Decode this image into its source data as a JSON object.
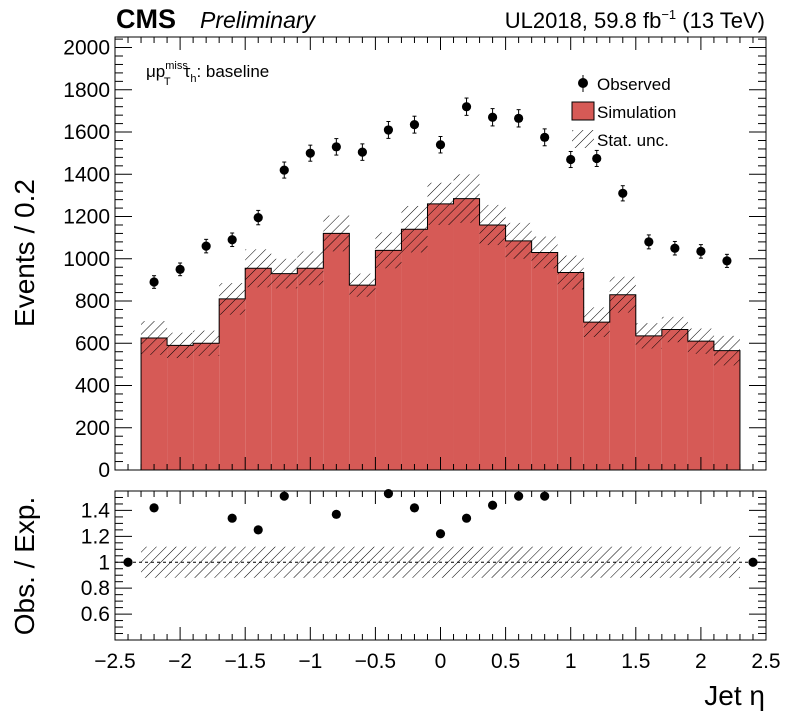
{
  "header": {
    "experiment": "CMS",
    "status": "Preliminary",
    "lumi_prefix": "UL2018, 59.8 fb",
    "lumi_exp": "−1",
    "lumi_suffix": " (13 TeV)"
  },
  "annotation": {
    "mu": "μ",
    "p": "p",
    "p_sup": "miss",
    "p_sub": "T",
    "tau": "τ",
    "tau_sub": "h",
    "suffix": ": baseline"
  },
  "colors": {
    "simulation_fill": "#d65a56",
    "simulation_edge": "#000000",
    "observed": "#000000"
  },
  "chart_data": [
    {
      "type": "bar",
      "panel": "main",
      "ylabel": "Events / 0.2",
      "xlim": [
        -2.5,
        2.5
      ],
      "ylim": [
        0,
        2050
      ],
      "yticks": [
        0,
        200,
        400,
        600,
        800,
        1000,
        1200,
        1400,
        1600,
        1800,
        2000
      ],
      "bin_edges": [
        -2.3,
        -2.1,
        -1.9,
        -1.7,
        -1.5,
        -1.3,
        -1.1,
        -0.9,
        -0.7,
        -0.5,
        -0.3,
        -0.1,
        0.1,
        0.3,
        0.5,
        0.7,
        0.9,
        1.1,
        1.3,
        1.5,
        1.7,
        1.9,
        2.1,
        2.3
      ],
      "series": [
        {
          "name": "Simulation",
          "values": [
            625,
            590,
            600,
            810,
            955,
            930,
            955,
            1120,
            875,
            1040,
            1140,
            1260,
            1285,
            1160,
            1085,
            1030,
            935,
            700,
            830,
            635,
            665,
            610,
            565
          ],
          "stat_unc": [
            80,
            60,
            60,
            75,
            90,
            70,
            80,
            85,
            55,
            85,
            110,
            100,
            115,
            95,
            85,
            75,
            80,
            70,
            85,
            60,
            60,
            60,
            70
          ]
        },
        {
          "name": "Observed",
          "x": [
            -2.2,
            -2.0,
            -1.8,
            -1.6,
            -1.4,
            -1.2,
            -1.0,
            -0.8,
            -0.6,
            -0.4,
            -0.2,
            0.0,
            0.2,
            0.4,
            0.6,
            0.8,
            1.0,
            1.2,
            1.4,
            1.6,
            1.8,
            2.0,
            2.2
          ],
          "values": [
            890,
            950,
            1060,
            1090,
            1195,
            1420,
            1500,
            1530,
            1505,
            1610,
            1635,
            1540,
            1720,
            1670,
            1665,
            1575,
            1470,
            1475,
            1310,
            1080,
            1050,
            1035,
            990
          ],
          "errors": [
            30,
            30,
            32,
            32,
            34,
            38,
            38,
            39,
            39,
            40,
            40,
            39,
            41,
            41,
            41,
            40,
            38,
            38,
            36,
            33,
            32,
            32,
            31
          ]
        }
      ],
      "legend": [
        {
          "label": "Observed",
          "kind": "marker"
        },
        {
          "label": "Simulation",
          "kind": "fill"
        },
        {
          "label": "Stat. unc.",
          "kind": "hatch"
        }
      ],
      "legend_position": "top-right"
    },
    {
      "type": "scatter",
      "panel": "ratio",
      "xlabel": "Jet η",
      "ylabel": "Obs. / Exp.",
      "xlim": [
        -2.5,
        2.5
      ],
      "ylim": [
        0.4,
        1.55
      ],
      "xticks": [
        -2.5,
        -2,
        -1.5,
        -1,
        -0.5,
        0,
        0.5,
        1,
        1.5,
        2,
        2.5
      ],
      "xtick_labels": [
        "−2.5",
        "−2",
        "−1.5",
        "−1",
        "−0.5",
        "0",
        "0.5",
        "1",
        "1.5",
        "2",
        "2.5"
      ],
      "yticks": [
        0.6,
        0.8,
        1.0,
        1.2,
        1.4
      ],
      "ytick_labels": [
        "0.6",
        "0.8",
        "1",
        "1.2",
        "1.4"
      ],
      "reference_line": 1,
      "band": {
        "x": [
          -2.3,
          2.3
        ],
        "low": 0.88,
        "high": 1.12
      },
      "x": [
        -2.4,
        -2.2,
        -1.6,
        -1.4,
        -1.2,
        -0.8,
        -0.4,
        -0.2,
        0.0,
        0.2,
        0.4,
        0.6,
        0.8,
        2.4
      ],
      "values": [
        1.0,
        1.42,
        1.34,
        1.25,
        1.51,
        1.37,
        1.53,
        1.42,
        1.22,
        1.34,
        1.44,
        1.51,
        1.51,
        1.0
      ],
      "errors": [
        0.02,
        0.03,
        0.03,
        0.03,
        0.03,
        0.03,
        0.03,
        0.03,
        0.02,
        0.02,
        0.03,
        0.03,
        0.03,
        0.02
      ]
    }
  ]
}
